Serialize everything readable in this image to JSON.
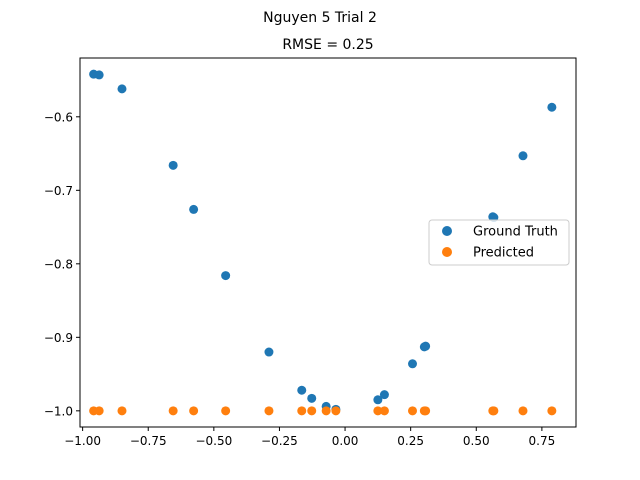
{
  "chart_data": {
    "type": "scatter",
    "suptitle": "Nguyen 5 Trial 2",
    "title": "RMSE = 0.25",
    "xlabel": "",
    "ylabel": "",
    "xlim": [
      -1.01,
      0.88
    ],
    "ylim": [
      -1.022,
      -0.52
    ],
    "xticks": [
      -1.0,
      -0.75,
      -0.5,
      -0.25,
      0.0,
      0.25,
      0.5,
      0.75
    ],
    "xtick_labels": [
      "−1.00",
      "−0.75",
      "−0.50",
      "−0.25",
      "0.00",
      "0.25",
      "0.50",
      "0.75"
    ],
    "yticks": [
      -1.0,
      -0.9,
      -0.8,
      -0.7,
      -0.6
    ],
    "ytick_labels": [
      "−1.0",
      "−0.9",
      "−0.8",
      "−0.7",
      "−0.6"
    ],
    "grid": false,
    "legend_position": "center-right",
    "series": [
      {
        "name": "Ground Truth",
        "color": "#1f77b4",
        "points": [
          [
            -0.958,
            -0.542
          ],
          [
            -0.937,
            -0.543
          ],
          [
            -0.85,
            -0.562
          ],
          [
            -0.655,
            -0.666
          ],
          [
            -0.577,
            -0.726
          ],
          [
            -0.455,
            -0.816
          ],
          [
            -0.29,
            -0.92
          ],
          [
            -0.165,
            -0.972
          ],
          [
            -0.127,
            -0.983
          ],
          [
            -0.072,
            -0.994
          ],
          [
            -0.035,
            -0.998
          ],
          [
            0.125,
            -0.985
          ],
          [
            0.15,
            -0.978
          ],
          [
            0.257,
            -0.936
          ],
          [
            0.302,
            -0.913
          ],
          [
            0.307,
            -0.912
          ],
          [
            0.563,
            -0.736
          ],
          [
            0.567,
            -0.737
          ],
          [
            0.678,
            -0.653
          ],
          [
            0.788,
            -0.587
          ]
        ]
      },
      {
        "name": "Predicted",
        "color": "#ff7f0e",
        "points": [
          [
            -0.958,
            -1.0
          ],
          [
            -0.937,
            -1.0
          ],
          [
            -0.85,
            -1.0
          ],
          [
            -0.655,
            -1.0
          ],
          [
            -0.577,
            -1.0
          ],
          [
            -0.455,
            -1.0
          ],
          [
            -0.29,
            -1.0
          ],
          [
            -0.165,
            -1.0
          ],
          [
            -0.127,
            -1.0
          ],
          [
            -0.072,
            -1.0
          ],
          [
            -0.035,
            -1.0
          ],
          [
            0.125,
            -1.0
          ],
          [
            0.15,
            -1.0
          ],
          [
            0.257,
            -1.0
          ],
          [
            0.302,
            -1.0
          ],
          [
            0.307,
            -1.0
          ],
          [
            0.563,
            -1.0
          ],
          [
            0.567,
            -1.0
          ],
          [
            0.678,
            -1.0
          ],
          [
            0.788,
            -1.0
          ]
        ]
      }
    ]
  }
}
